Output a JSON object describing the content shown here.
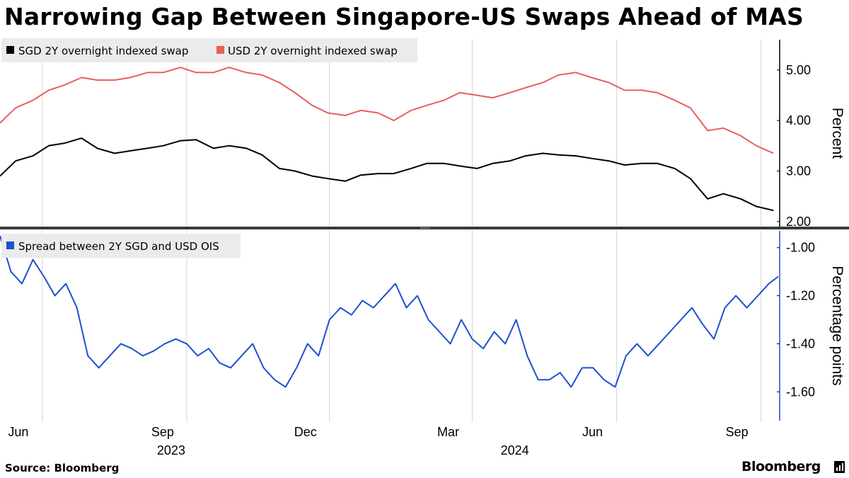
{
  "title": "Narrowing Gap Between Singapore-US Swaps Ahead of MAS",
  "source": "Source: Bloomberg",
  "brand": "Bloomberg",
  "chart_data": [
    {
      "type": "line",
      "ylabel": "Percent",
      "ylim": [
        1.9,
        5.6
      ],
      "yticks": [
        2.0,
        3.0,
        4.0,
        5.0
      ],
      "ytick_labels": [
        "2.00",
        "3.00",
        "4.00",
        "5.00"
      ],
      "xlim": [
        "2023-05-05",
        "2024-09-12"
      ],
      "legend_position": "top-left",
      "series": [
        {
          "name": "SGD 2Y overnight indexed swap",
          "color": "#000000",
          "x": [
            "2023-05-05",
            "2023-05-15",
            "2023-05-26",
            "2023-06-05",
            "2023-06-15",
            "2023-06-26",
            "2023-07-06",
            "2023-07-17",
            "2023-07-27",
            "2023-08-07",
            "2023-08-17",
            "2023-08-28",
            "2023-09-07",
            "2023-09-18",
            "2023-09-28",
            "2023-10-09",
            "2023-10-19",
            "2023-10-30",
            "2023-11-09",
            "2023-11-20",
            "2023-11-30",
            "2023-12-11",
            "2023-12-21",
            "2024-01-01",
            "2024-01-11",
            "2024-01-22",
            "2024-02-01",
            "2024-02-12",
            "2024-02-22",
            "2024-03-04",
            "2024-03-14",
            "2024-03-25",
            "2024-04-04",
            "2024-04-15",
            "2024-04-25",
            "2024-05-06",
            "2024-05-16",
            "2024-05-27",
            "2024-06-06",
            "2024-06-17",
            "2024-06-27",
            "2024-07-08",
            "2024-07-18",
            "2024-07-29",
            "2024-08-08",
            "2024-08-19",
            "2024-08-29",
            "2024-09-09"
          ],
          "values": [
            2.9,
            3.2,
            3.3,
            3.5,
            3.55,
            3.65,
            3.45,
            3.35,
            3.4,
            3.45,
            3.5,
            3.6,
            3.62,
            3.45,
            3.5,
            3.45,
            3.32,
            3.05,
            3.0,
            2.9,
            2.85,
            2.8,
            2.92,
            2.95,
            2.95,
            3.05,
            3.15,
            3.15,
            3.1,
            3.05,
            3.15,
            3.2,
            3.3,
            3.35,
            3.32,
            3.3,
            3.25,
            3.2,
            3.12,
            3.15,
            3.15,
            3.05,
            2.85,
            2.45,
            2.55,
            2.45,
            2.3,
            2.22
          ]
        },
        {
          "name": "USD 2Y overnight indexed swap",
          "color": "#e85e5e",
          "x": [
            "2023-05-05",
            "2023-05-15",
            "2023-05-26",
            "2023-06-05",
            "2023-06-15",
            "2023-06-26",
            "2023-07-06",
            "2023-07-17",
            "2023-07-27",
            "2023-08-07",
            "2023-08-17",
            "2023-08-28",
            "2023-09-07",
            "2023-09-18",
            "2023-09-28",
            "2023-10-09",
            "2023-10-19",
            "2023-10-30",
            "2023-11-09",
            "2023-11-20",
            "2023-11-30",
            "2023-12-11",
            "2023-12-21",
            "2024-01-01",
            "2024-01-11",
            "2024-01-22",
            "2024-02-01",
            "2024-02-12",
            "2024-02-22",
            "2024-03-04",
            "2024-03-14",
            "2024-03-25",
            "2024-04-04",
            "2024-04-15",
            "2024-04-25",
            "2024-05-06",
            "2024-05-16",
            "2024-05-27",
            "2024-06-06",
            "2024-06-17",
            "2024-06-27",
            "2024-07-08",
            "2024-07-18",
            "2024-07-29",
            "2024-08-08",
            "2024-08-19",
            "2024-08-29",
            "2024-09-09"
          ],
          "values": [
            3.95,
            4.25,
            4.4,
            4.6,
            4.7,
            4.85,
            4.8,
            4.8,
            4.85,
            4.95,
            4.95,
            5.05,
            4.95,
            4.95,
            5.05,
            4.95,
            4.9,
            4.75,
            4.55,
            4.3,
            4.15,
            4.1,
            4.2,
            4.15,
            4.0,
            4.2,
            4.3,
            4.4,
            4.55,
            4.5,
            4.45,
            4.55,
            4.65,
            4.75,
            4.9,
            4.95,
            4.85,
            4.75,
            4.6,
            4.6,
            4.55,
            4.4,
            4.25,
            3.8,
            3.85,
            3.7,
            3.5,
            3.35
          ]
        }
      ]
    },
    {
      "type": "line",
      "ylabel": "Percentage points",
      "ylim": [
        -1.72,
        -0.93
      ],
      "yticks": [
        -1.6,
        -1.4,
        -1.2,
        -1.0
      ],
      "ytick_labels": [
        "-1.60",
        "-1.40",
        "-1.20",
        "-1.00"
      ],
      "xlim": [
        "2023-05-05",
        "2024-09-12"
      ],
      "legend_position": "top-left",
      "xticks": [
        "Jun",
        "Sep",
        "Dec",
        "Mar",
        "Jun",
        "Sep"
      ],
      "xtick_dates": [
        "2023-06-01",
        "2023-09-01",
        "2023-12-01",
        "2024-03-01",
        "2024-06-01",
        "2024-09-01"
      ],
      "year_labels": [
        "2023",
        "2024"
      ],
      "year_dates": [
        "2023-09-01",
        "2024-04-07"
      ],
      "series": [
        {
          "name": "Spread between 2Y SGD and USD OIS",
          "color": "#1f4fd1",
          "x": [
            "2023-05-05",
            "2023-05-12",
            "2023-05-19",
            "2023-05-26",
            "2023-06-02",
            "2023-06-09",
            "2023-06-16",
            "2023-06-23",
            "2023-06-30",
            "2023-07-07",
            "2023-07-14",
            "2023-07-21",
            "2023-07-28",
            "2023-08-04",
            "2023-08-11",
            "2023-08-18",
            "2023-08-25",
            "2023-09-01",
            "2023-09-08",
            "2023-09-15",
            "2023-09-22",
            "2023-09-29",
            "2023-10-06",
            "2023-10-13",
            "2023-10-20",
            "2023-10-27",
            "2023-11-03",
            "2023-11-10",
            "2023-11-17",
            "2023-11-24",
            "2023-12-01",
            "2023-12-08",
            "2023-12-15",
            "2023-12-22",
            "2023-12-29",
            "2024-01-05",
            "2024-01-12",
            "2024-01-19",
            "2024-01-26",
            "2024-02-02",
            "2024-02-09",
            "2024-02-16",
            "2024-02-23",
            "2024-03-01",
            "2024-03-08",
            "2024-03-15",
            "2024-03-22",
            "2024-03-29",
            "2024-04-05",
            "2024-04-12",
            "2024-04-19",
            "2024-04-26",
            "2024-05-03",
            "2024-05-10",
            "2024-05-17",
            "2024-05-24",
            "2024-05-31",
            "2024-06-07",
            "2024-06-14",
            "2024-06-21",
            "2024-06-28",
            "2024-07-05",
            "2024-07-12",
            "2024-07-19",
            "2024-07-26",
            "2024-08-02",
            "2024-08-09",
            "2024-08-16",
            "2024-08-23",
            "2024-08-30",
            "2024-09-06",
            "2024-09-12"
          ],
          "values": [
            -0.95,
            -1.1,
            -1.15,
            -1.05,
            -1.12,
            -1.2,
            -1.15,
            -1.25,
            -1.45,
            -1.5,
            -1.45,
            -1.4,
            -1.42,
            -1.45,
            -1.43,
            -1.4,
            -1.38,
            -1.4,
            -1.45,
            -1.42,
            -1.48,
            -1.5,
            -1.45,
            -1.4,
            -1.5,
            -1.55,
            -1.58,
            -1.5,
            -1.4,
            -1.45,
            -1.3,
            -1.25,
            -1.28,
            -1.22,
            -1.25,
            -1.2,
            -1.15,
            -1.25,
            -1.2,
            -1.3,
            -1.35,
            -1.4,
            -1.3,
            -1.38,
            -1.42,
            -1.35,
            -1.4,
            -1.3,
            -1.45,
            -1.55,
            -1.55,
            -1.52,
            -1.58,
            -1.5,
            -1.5,
            -1.55,
            -1.58,
            -1.45,
            -1.4,
            -1.45,
            -1.4,
            -1.35,
            -1.3,
            -1.25,
            -1.32,
            -1.38,
            -1.25,
            -1.2,
            -1.25,
            -1.2,
            -1.15,
            -1.12
          ]
        }
      ]
    }
  ]
}
